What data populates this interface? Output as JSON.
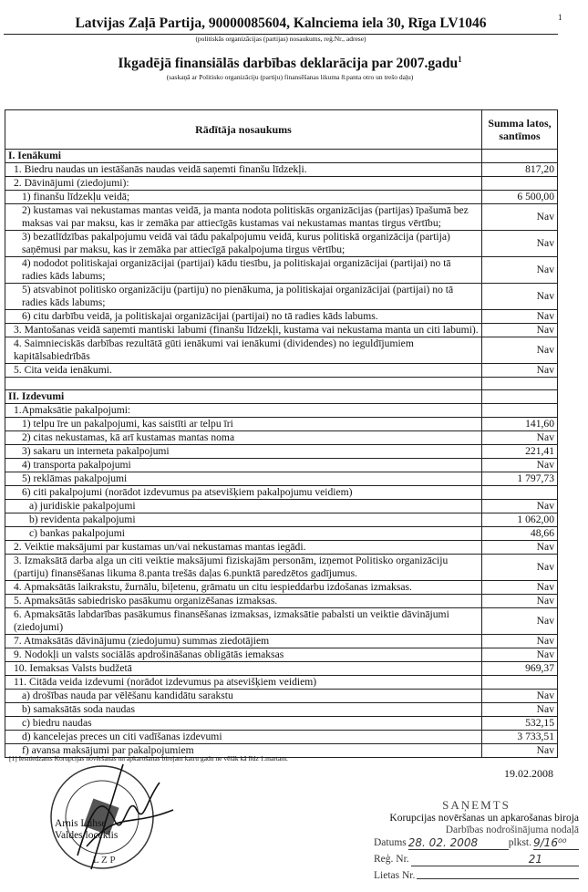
{
  "page_number": "1",
  "header": {
    "party": "Latvijas Zaļā Partija, 90000085604, Kalnciema iela 30, Rīga LV1046",
    "party_caption": "(politiskās organizācijas (partijas) nosaukums, reģ.Nr., adrese)",
    "title": "Ikgadējā finansiālās darbības deklarācija par 2007.gadu",
    "title_footnote": "1",
    "subtitle": "(saskaņā ar Politisko organizāciju (partiju) finansēšanas likuma 8.panta otro un trešo daļu)"
  },
  "table": {
    "columns": [
      "Rādītāja nosaukums",
      "Summa latos, santīmos"
    ],
    "rows": [
      {
        "label": "I. Ienākumi",
        "value": "",
        "level": 0,
        "section": true
      },
      {
        "label": "1. Biedru naudas un iestāšanās naudas veidā saņemti finanšu līdzekļi.",
        "value": "817,20",
        "level": 1
      },
      {
        "label": "2. Dāvinājumi (ziedojumi):",
        "value": "",
        "level": 1
      },
      {
        "label": "1) finanšu līdzekļu veidā;",
        "value": "6 500,00",
        "level": 2
      },
      {
        "label": "2) kustamas vai nekustamas mantas veidā, ja manta nodota politiskās organizācijas (partijas) īpašumā bez maksas vai par maksu, kas ir zemāka par attiecīgās kustamas vai nekustamas mantas tirgus vērtību;",
        "value": "Nav",
        "level": 2
      },
      {
        "label": "3) bezatlīdzības pakalpojumu veidā vai tādu pakalpojumu veidā, kurus politiskā organizācija (partija) saņēmusi par maksu, kas ir zemāka par attiecīgā pakalpojuma tirgus vērtību;",
        "value": "Nav",
        "level": 2
      },
      {
        "label": "4) nododot politiskajai organizācijai (partijai) kādu tiesību, ja politiskajai organizācijai (partijai) no tā radies kāds labums;",
        "value": "Nav",
        "level": 2
      },
      {
        "label": "5) atsvabinot politisko organizāciju (partiju) no pienākuma, ja politiskajai organizācijai (partijai) no tā radies kāds labums;",
        "value": "Nav",
        "level": 2
      },
      {
        "label": "6) citu darbību veidā, ja politiskajai organizācijai (partijai) no tā radies kāds labums.",
        "value": "Nav",
        "level": 2
      },
      {
        "label": "3. Mantošanas veidā saņemti mantiski labumi (finanšu līdzekļi, kustama vai nekustama manta un citi labumi).",
        "value": "Nav",
        "level": 1
      },
      {
        "label": "4. Saimnieciskās darbības rezultātā gūti ienākumi vai ienākumi (dividendes) no ieguldījumiem kapitālsabiedrībās",
        "value": "Nav",
        "level": 1
      },
      {
        "label": "5. Cita veida ienākumi.",
        "value": "Nav",
        "level": 1
      },
      {
        "label": "",
        "value": "",
        "level": 0
      },
      {
        "label": "II. Izdevumi",
        "value": "",
        "level": 0,
        "section": true
      },
      {
        "label": "1.Apmaksātie pakalpojumi:",
        "value": "",
        "level": 1
      },
      {
        "label": "1) telpu īre un pakalpojumi, kas saistīti ar telpu īri",
        "value": "141,60",
        "level": 2
      },
      {
        "label": "2) citas nekustamas, kā arī kustamas mantas noma",
        "value": "Nav",
        "level": 2
      },
      {
        "label": "3) sakaru un interneta pakalpojumi",
        "value": "221,41",
        "level": 2
      },
      {
        "label": "4) transporta pakalpojumi",
        "value": "Nav",
        "level": 2
      },
      {
        "label": "5) reklāmas pakalpojumi",
        "value": "1 797,73",
        "level": 2
      },
      {
        "label": "6) citi pakalpojumi (norādot izdevumus pa atsevišķiem pakalpojumu veidiem)",
        "value": "",
        "level": 2
      },
      {
        "label": "a) juridiskie pakalpojumi",
        "value": "Nav",
        "level": 3
      },
      {
        "label": "b) revidenta pakalpojumi",
        "value": "1 062,00",
        "level": 3
      },
      {
        "label": "c) bankas pakalpojumi",
        "value": "48,66",
        "level": 3
      },
      {
        "label": "2. Veiktie maksājumi par kustamas un/vai nekustamas mantas iegādi.",
        "value": "Nav",
        "level": 1
      },
      {
        "label": "3. Izmaksātā darba alga un citi veiktie maksājumi fiziskajām personām, izņemot Politisko organizāciju (partiju) finansēšanas likuma 8.panta trešās daļas 6.punktā paredzētos gadījumus.",
        "value": "Nav",
        "level": 1
      },
      {
        "label": "4. Apmaksātās laikrakstu, žurnālu, biļetenu, grāmatu un citu iespieddarbu izdošanas izmaksas.",
        "value": "Nav",
        "level": 1
      },
      {
        "label": "5. Apmaksātās sabiedrisko pasākumu organizēšanas izmaksas.",
        "value": "Nav",
        "level": 1
      },
      {
        "label": "6. Apmaksātās labdarības pasākumus finansēšanas izmaksas, izmaksātie pabalsti un veiktie dāvinājumi (ziedojumi)",
        "value": "Nav",
        "level": 1
      },
      {
        "label": "7. Atmaksātās dāvinājumu (ziedojumu) summas ziedotājiem",
        "value": "Nav",
        "level": 1
      },
      {
        "label": "9. Nodokļi un valsts sociālās apdrošināšanas obligātās iemaksas",
        "value": "Nav",
        "level": 1
      },
      {
        "label": "10. Iemaksas Valsts budžetā",
        "value": "969,37",
        "level": 1
      },
      {
        "label": "11. Citāda veida izdevumi (norādot izdevumus pa atsevišķiem veidiem)",
        "value": "",
        "level": 1
      },
      {
        "label": "a) drošības nauda par vēlēšanu kandidātu sarakstu",
        "value": "Nav",
        "level": 2
      },
      {
        "label": "b) samaksātās soda naudas",
        "value": "Nav",
        "level": 2
      },
      {
        "label": "c) biedru naudas",
        "value": "532,15",
        "level": 2
      },
      {
        "label": "d) kancelejas preces un citi vadīšanas izdevumi",
        "value": "3 733,51",
        "level": 2
      },
      {
        "label": "f) avansa maksājumi par pakalpojumiem",
        "value": "Nav",
        "level": 2
      }
    ]
  },
  "footnote": "[1] Iesniedzams Korupcijas novēršanas un apkarošanas birojam katru gadu ne vēlāk kā līdz 1.martam.",
  "date": "19.02.2008",
  "signatory": {
    "name": "Arnis Luhse",
    "role": "Valdes loceklis"
  },
  "stamp": {
    "text": "LATVIJAS ZAĻĀ PARTIJA",
    "initials": "LZP"
  },
  "received_stamp": {
    "heading": "SAŅEMTS",
    "org_line1": "Korupcijas novēršanas un apkarošanas biroja",
    "org_line2": "Darbības nodrošinājuma nodaļā",
    "date_label": "Datums",
    "date_value": "28. 02. 2008",
    "time_label": "plkst.",
    "time_value": "9/16⁰⁰",
    "reg_label": "Reģ. Nr.",
    "reg_value": "21",
    "case_label": "Lietas Nr."
  }
}
